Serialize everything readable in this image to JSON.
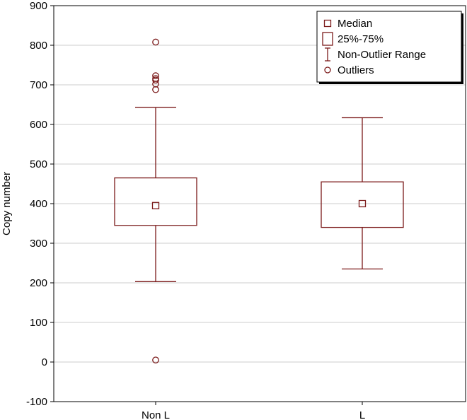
{
  "chart_data": {
    "type": "boxplot",
    "ylabel": "Copy number",
    "xlabel": "",
    "ylim": [
      -100,
      900
    ],
    "yticks": [
      -100,
      0,
      100,
      200,
      300,
      400,
      500,
      600,
      700,
      800,
      900
    ],
    "grid": "horizontal",
    "categories": [
      "Non L",
      "L"
    ],
    "boxes": [
      {
        "category": "Non L",
        "median": 395,
        "q1": 345,
        "q3": 465,
        "whisker_low": 203,
        "whisker_high": 643,
        "outliers": [
          808,
          723,
          716,
          712,
          702,
          688,
          5
        ]
      },
      {
        "category": "L",
        "median": 400,
        "q1": 340,
        "q3": 455,
        "whisker_low": 235,
        "whisker_high": 617,
        "outliers": []
      }
    ],
    "legend": {
      "position": "top-right",
      "items": [
        "Median",
        "25%-75%",
        "Non-Outlier Range",
        "Outliers"
      ]
    },
    "series_color": "#7b1a1a",
    "grid_color": "#cccccc"
  }
}
